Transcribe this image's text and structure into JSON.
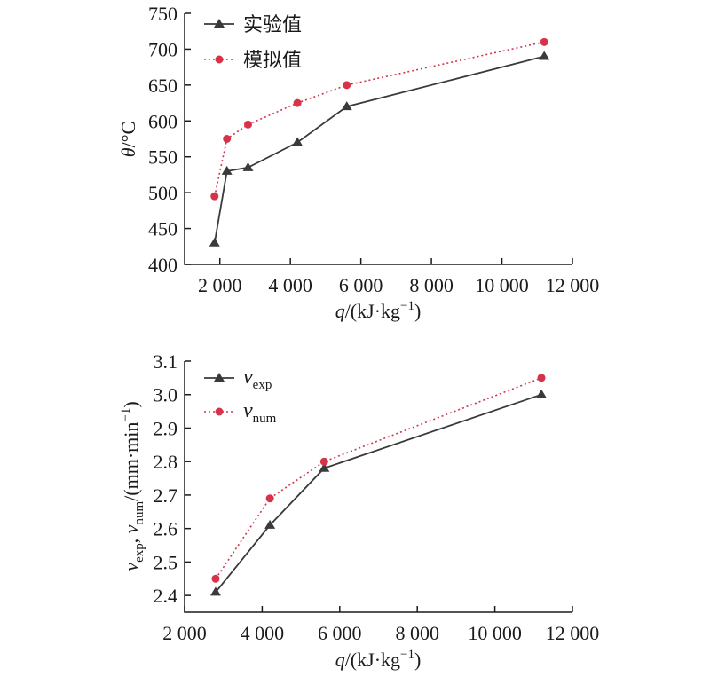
{
  "colors": {
    "exp": "#3a3a3a",
    "num": "#d6334a",
    "axis": "#1a1a1a"
  },
  "chart_data": [
    {
      "type": "line",
      "xlabel": {
        "var": "q",
        "unit_pre": "/(kJ·kg",
        "sup": "−1",
        "unit_post": ")"
      },
      "ylabel": {
        "var": "θ",
        "unit": "/°C"
      },
      "xlim": [
        1000,
        12000
      ],
      "ylim": [
        400,
        750
      ],
      "x_ticks": [
        2000,
        4000,
        6000,
        8000,
        10000,
        12000
      ],
      "x_tick_labels": [
        "2 000",
        "4 000",
        "6 000",
        "8 000",
        "10 000",
        "12 000"
      ],
      "y_ticks": [
        400,
        450,
        500,
        550,
        600,
        650,
        700,
        750
      ],
      "y_tick_labels": [
        "400",
        "450",
        "500",
        "550",
        "600",
        "650",
        "700",
        "750"
      ],
      "legend": {
        "placement": "top-left"
      },
      "series": [
        {
          "name": "实验值",
          "style": "solid-triangle",
          "x": [
            1850,
            2200,
            2800,
            4200,
            5600,
            11200
          ],
          "y": [
            430,
            530,
            535,
            570,
            620,
            690
          ]
        },
        {
          "name": "模拟值",
          "style": "dotted-circle",
          "x": [
            1850,
            2200,
            2800,
            4200,
            5600,
            11200
          ],
          "y": [
            495,
            575,
            595,
            625,
            650,
            710
          ]
        }
      ]
    },
    {
      "type": "line",
      "xlabel": {
        "var": "q",
        "unit_pre": "/(kJ·kg",
        "sup": "−1",
        "unit_post": ")"
      },
      "ylabel": {
        "v1": "v",
        "sub1": "exp",
        "sep": ", ",
        "v2": "v",
        "sub2": "num",
        "unit_pre": "/(mm·min",
        "sup": "−1",
        "unit_post": ")"
      },
      "xlim": [
        2000,
        12000
      ],
      "ylim": [
        2.35,
        3.1
      ],
      "x_ticks": [
        2000,
        4000,
        6000,
        8000,
        10000,
        12000
      ],
      "x_tick_labels": [
        "2 000",
        "4 000",
        "6 000",
        "8 000",
        "10 000",
        "12 000"
      ],
      "y_ticks": [
        2.4,
        2.5,
        2.6,
        2.7,
        2.8,
        2.9,
        3.0,
        3.1
      ],
      "y_tick_labels": [
        "2.4",
        "2.5",
        "2.6",
        "2.7",
        "2.8",
        "2.9",
        "3.0",
        "3.1"
      ],
      "legend": {
        "placement": "top-left"
      },
      "series": [
        {
          "name": "v",
          "name_sub": "exp",
          "style": "solid-triangle",
          "x": [
            2800,
            4200,
            5600,
            11200
          ],
          "y": [
            2.41,
            2.61,
            2.78,
            3.0
          ]
        },
        {
          "name": "v",
          "name_sub": "num",
          "style": "dotted-circle",
          "x": [
            2800,
            4200,
            5600,
            11200
          ],
          "y": [
            2.45,
            2.69,
            2.8,
            3.05
          ]
        }
      ]
    }
  ]
}
